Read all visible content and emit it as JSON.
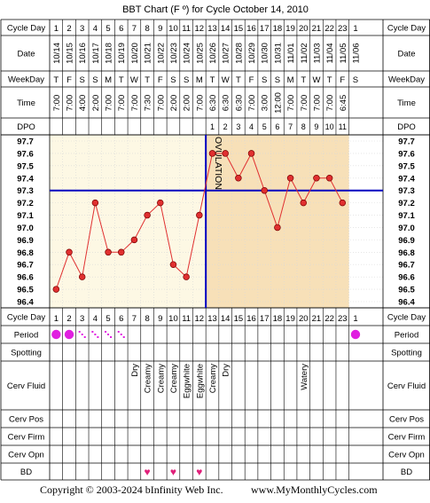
{
  "title": "BBT Chart (F º) for Cycle October 14, 2010",
  "footer": {
    "copyright": "Copyright © 2003-2024 bInfinity Web Inc.",
    "site": "www.MyMonthlyCycles.com"
  },
  "row_labels": {
    "cycle_day": "Cycle Day",
    "date": "Date",
    "weekday": "WeekDay",
    "time": "Time",
    "dpo": "DPO",
    "period": "Period",
    "spotting": "Spotting",
    "cerv_fluid": "Cerv Fluid",
    "cerv_pos": "Cerv Pos",
    "cerv_firm": "Cerv Firm",
    "cerv_opn": "Cerv Opn",
    "bd": "BD"
  },
  "ovulation_label": "OVULATION",
  "colors": {
    "line": "#e03030",
    "coverline": "#0000c0",
    "pre_bg": "#fdf8e4",
    "post_bg": "#f7e0b8",
    "period": "#e020e0",
    "bd": "#e0207a",
    "grid": "#d8d8d8"
  },
  "columns": [
    {
      "cd": "1",
      "date": "10/14",
      "wd": "T",
      "time": "7:00",
      "dpo": "",
      "period": "heavy",
      "fluid": "",
      "bd": false
    },
    {
      "cd": "2",
      "date": "10/15",
      "wd": "F",
      "time": "7:00",
      "dpo": "",
      "period": "heavy",
      "fluid": "",
      "bd": false
    },
    {
      "cd": "3",
      "date": "10/16",
      "wd": "S",
      "time": "4:00",
      "dpo": "",
      "period": "spot",
      "fluid": "",
      "bd": false
    },
    {
      "cd": "4",
      "date": "10/17",
      "wd": "S",
      "time": "2:00",
      "dpo": "",
      "period": "spot",
      "fluid": "",
      "bd": false
    },
    {
      "cd": "5",
      "date": "10/18",
      "wd": "M",
      "time": "7:00",
      "dpo": "",
      "period": "spot",
      "fluid": "",
      "bd": false
    },
    {
      "cd": "6",
      "date": "10/19",
      "wd": "T",
      "time": "7:00",
      "dpo": "",
      "period": "spot",
      "fluid": "",
      "bd": false
    },
    {
      "cd": "7",
      "date": "10/20",
      "wd": "W",
      "time": "7:00",
      "dpo": "",
      "period": "",
      "fluid": "Dry",
      "bd": false
    },
    {
      "cd": "8",
      "date": "10/21",
      "wd": "T",
      "time": "7:30",
      "dpo": "",
      "period": "",
      "fluid": "Creamy",
      "bd": true
    },
    {
      "cd": "9",
      "date": "10/22",
      "wd": "F",
      "time": "7:00",
      "dpo": "",
      "period": "",
      "fluid": "Creamy",
      "bd": false
    },
    {
      "cd": "10",
      "date": "10/23",
      "wd": "S",
      "time": "2:00",
      "dpo": "",
      "period": "",
      "fluid": "Creamy",
      "bd": true
    },
    {
      "cd": "11",
      "date": "10/24",
      "wd": "S",
      "time": "2:00",
      "dpo": "",
      "period": "",
      "fluid": "Eggwhite",
      "bd": false
    },
    {
      "cd": "12",
      "date": "10/25",
      "wd": "M",
      "time": "7:00",
      "dpo": "",
      "period": "",
      "fluid": "Eggwhite",
      "bd": true
    },
    {
      "cd": "13",
      "date": "10/26",
      "wd": "T",
      "time": "6:30",
      "dpo": "1",
      "period": "",
      "fluid": "Creamy",
      "bd": false
    },
    {
      "cd": "14",
      "date": "10/27",
      "wd": "W",
      "time": "6:30",
      "dpo": "2",
      "period": "",
      "fluid": "Dry",
      "bd": false
    },
    {
      "cd": "15",
      "date": "10/28",
      "wd": "T",
      "time": "6:30",
      "dpo": "3",
      "period": "",
      "fluid": "",
      "bd": false
    },
    {
      "cd": "16",
      "date": "10/29",
      "wd": "F",
      "time": "7:00",
      "dpo": "4",
      "period": "",
      "fluid": "",
      "bd": false
    },
    {
      "cd": "17",
      "date": "10/30",
      "wd": "S",
      "time": "3:00",
      "dpo": "5",
      "period": "",
      "fluid": "",
      "bd": false
    },
    {
      "cd": "18",
      "date": "10/31",
      "wd": "S",
      "time": "12:00",
      "dpo": "6",
      "period": "",
      "fluid": "",
      "bd": false
    },
    {
      "cd": "19",
      "date": "11/01",
      "wd": "M",
      "time": "7:00",
      "dpo": "7",
      "period": "",
      "fluid": "",
      "bd": false
    },
    {
      "cd": "20",
      "date": "11/02",
      "wd": "T",
      "time": "7:00",
      "dpo": "8",
      "period": "",
      "fluid": "Watery",
      "bd": false
    },
    {
      "cd": "21",
      "date": "11/03",
      "wd": "W",
      "time": "7:00",
      "dpo": "9",
      "period": "",
      "fluid": "",
      "bd": false
    },
    {
      "cd": "22",
      "date": "11/04",
      "wd": "T",
      "time": "7:00",
      "dpo": "10",
      "period": "",
      "fluid": "",
      "bd": false
    },
    {
      "cd": "23",
      "date": "11/05",
      "wd": "F",
      "time": "6:45",
      "dpo": "11",
      "period": "",
      "fluid": "",
      "bd": false
    },
    {
      "cd": "1",
      "date": "11/06",
      "wd": "S",
      "time": "",
      "dpo": "",
      "period": "heavy",
      "fluid": "",
      "bd": false
    }
  ],
  "chart_data": {
    "type": "line",
    "title": "BBT Chart (F º) for Cycle October 14, 2010",
    "xlabel": "Cycle Day",
    "ylabel": "",
    "x": [
      1,
      2,
      3,
      4,
      5,
      6,
      7,
      8,
      9,
      10,
      11,
      12,
      13,
      14,
      15,
      16,
      17,
      18,
      19,
      20,
      21,
      22,
      23
    ],
    "values": [
      96.5,
      96.8,
      96.6,
      97.2,
      96.8,
      96.8,
      96.9,
      97.1,
      97.2,
      96.7,
      96.6,
      97.1,
      97.6,
      97.6,
      97.4,
      97.6,
      97.3,
      97.0,
      97.4,
      97.2,
      97.4,
      97.4,
      97.2
    ],
    "y_ticks": [
      "97.7",
      "97.6",
      "97.5",
      "97.4",
      "97.3",
      "97.2",
      "97.1",
      "97.0",
      "96.9",
      "96.8",
      "96.7",
      "96.6",
      "96.5",
      "96.4"
    ],
    "ylim": [
      96.4,
      97.7
    ],
    "coverline": 97.3,
    "ovulation_day": 12
  }
}
